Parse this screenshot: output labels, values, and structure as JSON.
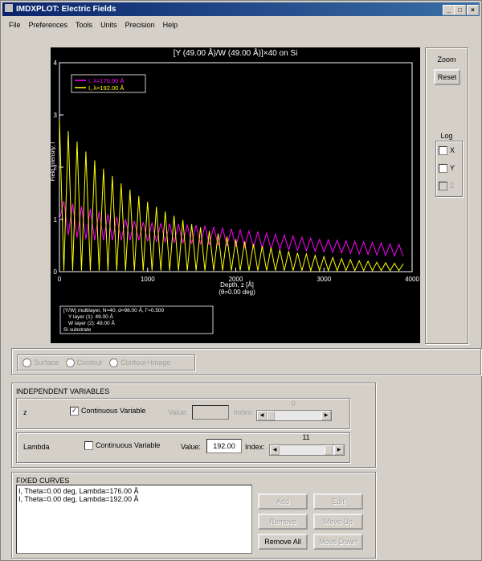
{
  "window": {
    "title": "IMDXPLOT: Electric Fields"
  },
  "menu": [
    "File",
    "Preferences",
    "Tools",
    "Units",
    "Precision",
    "Help"
  ],
  "chart_data": {
    "type": "line",
    "title": "[Y (49.00 Å)/W (49.00 Å)]×40 on Si",
    "x_label": "Depth, z [Å]",
    "x_sublabel": "(θ=0.00 deg)",
    "y_label": "Field Intensity, I",
    "xlim": [
      0,
      4000
    ],
    "xticks": [
      0,
      1000,
      2000,
      3000,
      4000
    ],
    "ylim": [
      0,
      4
    ],
    "yticks": [
      0,
      1,
      2,
      3,
      4
    ],
    "legend": "upper left",
    "x": [
      0,
      50,
      100,
      150,
      200,
      250,
      300,
      350,
      400,
      450,
      500,
      550,
      600,
      650,
      700,
      750,
      800,
      850,
      900,
      950,
      1000,
      1050,
      1100,
      1150,
      1200,
      1250,
      1300,
      1350,
      1400,
      1450,
      1500,
      1550,
      1600,
      1650,
      1700,
      1750,
      1800,
      1850,
      1900,
      1950,
      2000,
      2050,
      2100,
      2150,
      2200,
      2250,
      2300,
      2350,
      2400,
      2450,
      2500,
      2550,
      2600,
      2650,
      2700,
      2750,
      2800,
      2850,
      2900,
      2950,
      3000,
      3050,
      3100,
      3150,
      3200,
      3250,
      3300,
      3350,
      3400,
      3450,
      3500,
      3550,
      3600,
      3650,
      3700,
      3750,
      3800,
      3850,
      3900
    ],
    "series": [
      {
        "name": "I, λ=176.00 Å",
        "color": "#ff00ff",
        "values": [
          1.0,
          1.35,
          0.7,
          1.3,
          0.65,
          1.25,
          0.62,
          1.2,
          0.6,
          1.15,
          0.6,
          1.1,
          0.6,
          1.05,
          0.6,
          1.0,
          0.6,
          0.97,
          0.6,
          0.95,
          0.58,
          0.94,
          0.57,
          0.93,
          0.56,
          0.92,
          0.55,
          0.91,
          0.54,
          0.9,
          0.53,
          0.89,
          0.52,
          0.88,
          0.51,
          0.86,
          0.5,
          0.84,
          0.49,
          0.82,
          0.48,
          0.8,
          0.47,
          0.78,
          0.46,
          0.76,
          0.45,
          0.74,
          0.44,
          0.72,
          0.43,
          0.7,
          0.42,
          0.68,
          0.41,
          0.66,
          0.4,
          0.64,
          0.39,
          0.62,
          0.38,
          0.61,
          0.37,
          0.6,
          0.36,
          0.59,
          0.35,
          0.58,
          0.34,
          0.57,
          0.33,
          0.56,
          0.32,
          0.55,
          0.31,
          0.53,
          0.3,
          0.52,
          0.3
        ]
      },
      {
        "name": "I, λ=192.00 Å",
        "color": "#ffff00",
        "values": [
          2.9,
          0.02,
          2.69,
          0.02,
          2.49,
          0.02,
          2.3,
          0.02,
          2.13,
          0.02,
          1.97,
          0.02,
          1.83,
          0.02,
          1.69,
          0.02,
          1.57,
          0.02,
          1.45,
          0.02,
          1.34,
          0.02,
          1.24,
          0.02,
          1.15,
          0.02,
          1.07,
          0.02,
          0.99,
          0.02,
          0.91,
          0.02,
          0.85,
          0.02,
          0.78,
          0.02,
          0.73,
          0.02,
          0.67,
          0.02,
          0.62,
          0.02,
          0.58,
          0.02,
          0.53,
          0.02,
          0.49,
          0.02,
          0.46,
          0.02,
          0.42,
          0.02,
          0.39,
          0.02,
          0.36,
          0.02,
          0.34,
          0.02,
          0.31,
          0.02,
          0.29,
          0.02,
          0.27,
          0.02,
          0.25,
          0.02,
          0.23,
          0.02,
          0.21,
          0.02,
          0.2,
          0.02,
          0.18,
          0.02,
          0.17,
          0.02,
          0.16,
          0.02,
          0.15
        ]
      }
    ],
    "annotation": [
      "[Y/W] multilayer, N=40, d=98.00 Å, Γ=0.500",
      "Y layer (1): 49.00 Å",
      "W layer (2): 49.00 Å",
      "Si substrate"
    ]
  },
  "zoom": {
    "label": "Zoom",
    "button": "Reset"
  },
  "log": {
    "label": "Log",
    "options": [
      "X",
      "Y",
      "Z"
    ]
  },
  "plot_type": [
    "Surface",
    "Contour",
    "Contour+Image"
  ],
  "independent_variables": {
    "title": "INDEPENDENT VARIABLES",
    "rows": [
      {
        "name": "z",
        "checkbox": "Continuous Variable",
        "value_label": "Value:",
        "index_label": "Index:",
        "index": 0
      },
      {
        "name": "Lambda",
        "checkbox": "Continuous Variable",
        "value_label": "Value:",
        "value": "192.00",
        "index_label": "Index:",
        "index": 11
      }
    ]
  },
  "fixed_curves": {
    "title": "FIXED CURVES",
    "items": [
      "I, Theta=0.00 deg, Lambda=176.00 Å",
      "I, Theta=0.00 deg, Lambda=192.00 Å"
    ],
    "buttons": [
      "Add",
      "Edit",
      "Remove",
      "Move Up",
      "Remove All",
      "Move Down"
    ]
  }
}
